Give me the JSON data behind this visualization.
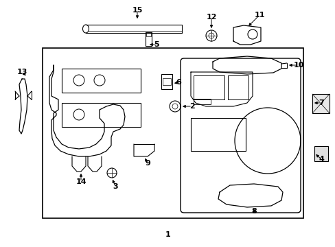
{
  "bg_color": "#ffffff",
  "fig_width": 4.89,
  "fig_height": 3.6,
  "dpi": 100
}
